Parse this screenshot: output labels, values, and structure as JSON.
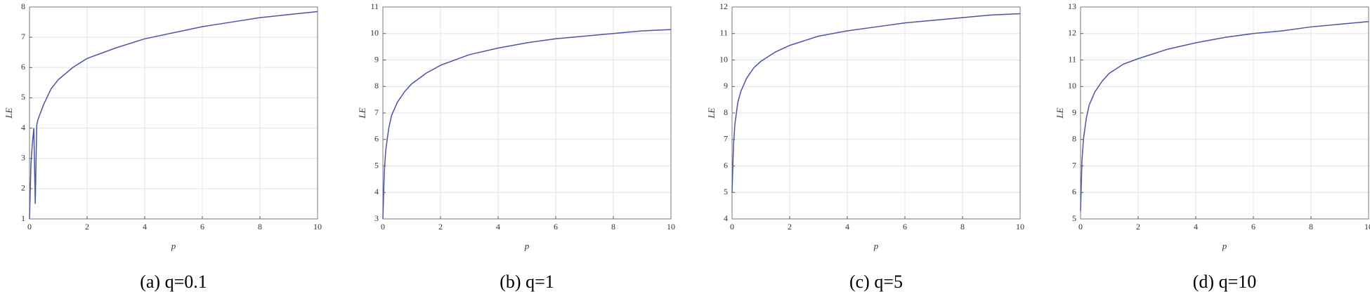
{
  "chart_data": [
    {
      "type": "line",
      "caption": "(a) q=0.1",
      "xlabel": "p",
      "ylabel": "LE",
      "grid": true,
      "xlim": [
        0,
        10
      ],
      "xticks": [
        0,
        2,
        4,
        6,
        8,
        10
      ],
      "ylim": [
        1,
        8
      ],
      "yticks": [
        1,
        2,
        3,
        4,
        5,
        6,
        7,
        8
      ],
      "x": [
        0,
        0.05,
        0.1,
        0.15,
        0.2,
        0.25,
        0.3,
        0.5,
        0.75,
        1,
        1.5,
        2,
        3,
        4,
        5,
        6,
        7,
        8,
        9,
        10
      ],
      "series": [
        {
          "color": "#4a55a8",
          "values": [
            1,
            2.8,
            3.5,
            4.0,
            1.5,
            4.1,
            4.3,
            4.8,
            5.3,
            5.6,
            6.0,
            6.3,
            6.65,
            6.95,
            7.15,
            7.35,
            7.5,
            7.65,
            7.75,
            7.85
          ]
        }
      ]
    },
    {
      "type": "line",
      "caption": "(b) q=1",
      "xlabel": "p",
      "ylabel": "LE",
      "grid": true,
      "xlim": [
        0,
        10
      ],
      "xticks": [
        0,
        2,
        4,
        6,
        8,
        10
      ],
      "ylim": [
        3,
        11
      ],
      "yticks": [
        3,
        4,
        5,
        6,
        7,
        8,
        9,
        10,
        11
      ],
      "x": [
        0,
        0.05,
        0.1,
        0.2,
        0.3,
        0.5,
        0.75,
        1,
        1.5,
        2,
        3,
        4,
        5,
        6,
        7,
        8,
        9,
        10
      ],
      "series": [
        {
          "color": "#4a55a8",
          "values": [
            3,
            4.8,
            5.6,
            6.4,
            6.9,
            7.4,
            7.8,
            8.1,
            8.5,
            8.8,
            9.2,
            9.45,
            9.65,
            9.8,
            9.9,
            10,
            10.1,
            10.15
          ]
        }
      ]
    },
    {
      "type": "line",
      "caption": "(c) q=5",
      "xlabel": "p",
      "ylabel": "LE",
      "grid": true,
      "xlim": [
        0,
        10
      ],
      "xticks": [
        0,
        2,
        4,
        6,
        8,
        10
      ],
      "ylim": [
        4,
        12
      ],
      "yticks": [
        4,
        5,
        6,
        7,
        8,
        9,
        10,
        11,
        12
      ],
      "x": [
        0,
        0.05,
        0.1,
        0.2,
        0.3,
        0.5,
        0.75,
        1,
        1.5,
        2,
        3,
        4,
        5,
        6,
        7,
        8,
        9,
        10
      ],
      "series": [
        {
          "color": "#4a55a8",
          "values": [
            5,
            6.8,
            7.6,
            8.4,
            8.8,
            9.3,
            9.7,
            9.95,
            10.3,
            10.55,
            10.9,
            11.1,
            11.25,
            11.4,
            11.5,
            11.6,
            11.7,
            11.75
          ]
        }
      ]
    },
    {
      "type": "line",
      "caption": "(d) q=10",
      "xlabel": "p",
      "ylabel": "LE",
      "grid": true,
      "xlim": [
        0,
        10
      ],
      "xticks": [
        0,
        2,
        4,
        6,
        8,
        10
      ],
      "ylim": [
        5,
        13
      ],
      "yticks": [
        5,
        6,
        7,
        8,
        9,
        10,
        11,
        12,
        13
      ],
      "x": [
        0,
        0.05,
        0.1,
        0.2,
        0.3,
        0.5,
        0.75,
        1,
        1.5,
        2,
        3,
        4,
        5,
        6,
        7,
        8,
        9,
        10
      ],
      "series": [
        {
          "color": "#4a55a8",
          "values": [
            5.3,
            7.2,
            8.0,
            8.8,
            9.3,
            9.8,
            10.2,
            10.5,
            10.85,
            11.05,
            11.4,
            11.65,
            11.85,
            12,
            12.1,
            12.25,
            12.35,
            12.45
          ]
        }
      ]
    }
  ]
}
